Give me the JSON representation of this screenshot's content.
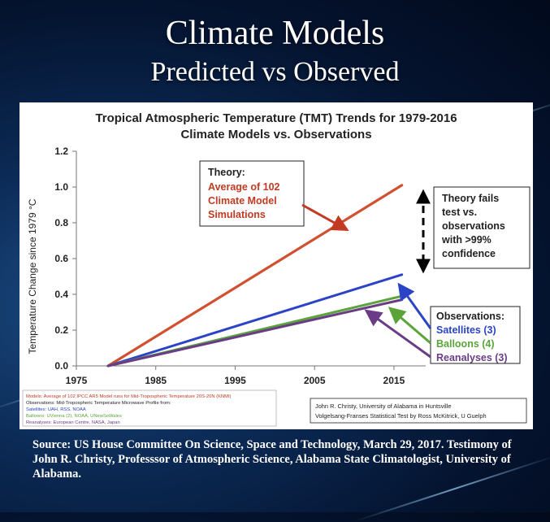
{
  "slide": {
    "title": "Climate Models",
    "subtitle": "Predicted vs Observed",
    "source": "Source: US House Committee On Science, Space and Technology, March 29, 2017. Testimony of John R. Christy, Professsor of Atmospheric Science, Alabama State Climatologist, University of Alabama."
  },
  "colors": {
    "model": "#d1502f",
    "satellites": "#2b44c7",
    "balloons": "#5aa43a",
    "reanalyses": "#6a3c86",
    "annotation_red": "#c23a22"
  },
  "chart_data": {
    "type": "line",
    "title": "Tropical Atmospheric Temperature (TMT) Trends for 1979-2016",
    "subtitle": "Climate Models vs. Observations",
    "xlabel": "",
    "ylabel": "Temperature Change since 1979 °C",
    "xlim": [
      1975,
      2019
    ],
    "ylim": [
      0,
      1.2
    ],
    "x_ticks": [
      "1975",
      "1985",
      "1995",
      "2005",
      "2015"
    ],
    "y_ticks": [
      "0.0",
      "0.2",
      "0.4",
      "0.6",
      "0.8",
      "1.0",
      "1.2"
    ],
    "series": [
      {
        "name": "Average of 102 Climate Model Simulations",
        "x": [
          1979,
          2016
        ],
        "values": [
          0,
          1.01
        ]
      },
      {
        "name": "Satellites (3)",
        "x": [
          1979,
          2016
        ],
        "values": [
          0,
          0.51
        ]
      },
      {
        "name": "Balloons (4)",
        "x": [
          1979,
          2016
        ],
        "values": [
          0,
          0.39
        ]
      },
      {
        "name": "Reanalyses (3)",
        "x": [
          1979,
          2016
        ],
        "values": [
          0,
          0.37
        ]
      }
    ],
    "annotations": {
      "theory_heading": "Theory:",
      "theory_lines": [
        "Average of 102",
        "Climate Model",
        "Simulations"
      ],
      "fails_lines": [
        "Theory fails",
        "test vs.",
        "observations",
        "with >99%",
        "confidence"
      ],
      "observations_heading": "Observations:",
      "observation_labels": [
        "Satellites (3)",
        "Balloons (4)",
        "Reanalyses (3)"
      ]
    },
    "notes_left": [
      "Models: Average of 102 IPCC AR5 Model runs for Mid-Tropospheric Temperature 20S-20N (KNMI)",
      "Observations: Mid-Tropospheric Temperature Microwave Profile from:",
      "Satellites: UAH, RSS, NOAA",
      "Balloons: UVienna (2), NOAA, UNewSoWales",
      "Reanalyses: European Centre, NASA, Japan"
    ],
    "notes_right": [
      "John R. Christy, University of Alabama in Huntsville",
      "Volgelsang-Franses Statistical Test by Ross McKitrick, U Guelph"
    ]
  }
}
